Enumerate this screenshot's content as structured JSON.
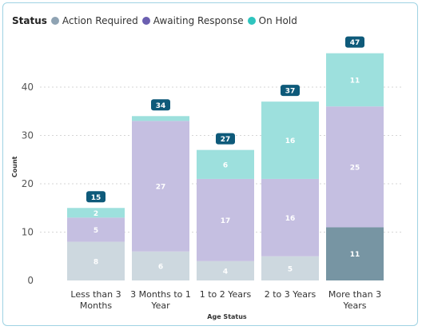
{
  "chart_data": {
    "type": "bar",
    "stacked": true,
    "legend_title": "Status",
    "legend_position": "top-left",
    "xlabel": "Age Status",
    "ylabel": "Count",
    "ylim": [
      0,
      47
    ],
    "yticks": [
      0,
      10,
      20,
      30,
      40
    ],
    "grid": true,
    "categories": [
      [
        "Less than 3",
        "Months"
      ],
      [
        "3 Months to 1",
        "Year"
      ],
      [
        "1 to 2 Years"
      ],
      [
        "2 to 3 Years"
      ],
      [
        "More than 3",
        "Years"
      ]
    ],
    "series": [
      {
        "name": "Action Required",
        "color": "#8fa3b3",
        "values": [
          8,
          6,
          4,
          5,
          11
        ]
      },
      {
        "name": "Awaiting Response",
        "color": "#6b5fb0",
        "values": [
          5,
          27,
          17,
          16,
          25
        ]
      },
      {
        "name": "On Hold",
        "color": "#2ec4be",
        "values": [
          2,
          1,
          6,
          16,
          11
        ]
      }
    ],
    "totals": [
      15,
      34,
      27,
      37,
      47
    ],
    "segment_labels": [
      [
        "8",
        "5",
        "2"
      ],
      [
        "6",
        "27",
        ""
      ],
      [
        "4",
        "17",
        "6"
      ],
      [
        "5",
        "16",
        "16"
      ],
      [
        "11",
        "25",
        "11"
      ]
    ],
    "highlighted": {
      "category_index": 4,
      "series_index": 0
    },
    "colors": {
      "faded_action_required": "#cdd8df",
      "faded_awaiting_response": "#c5bfe1",
      "faded_on_hold": "#9de0dd",
      "highlight_action_required": "#7795a3",
      "total_badge": "#0e5a7a",
      "frame_border": "#9fd3e3"
    }
  }
}
